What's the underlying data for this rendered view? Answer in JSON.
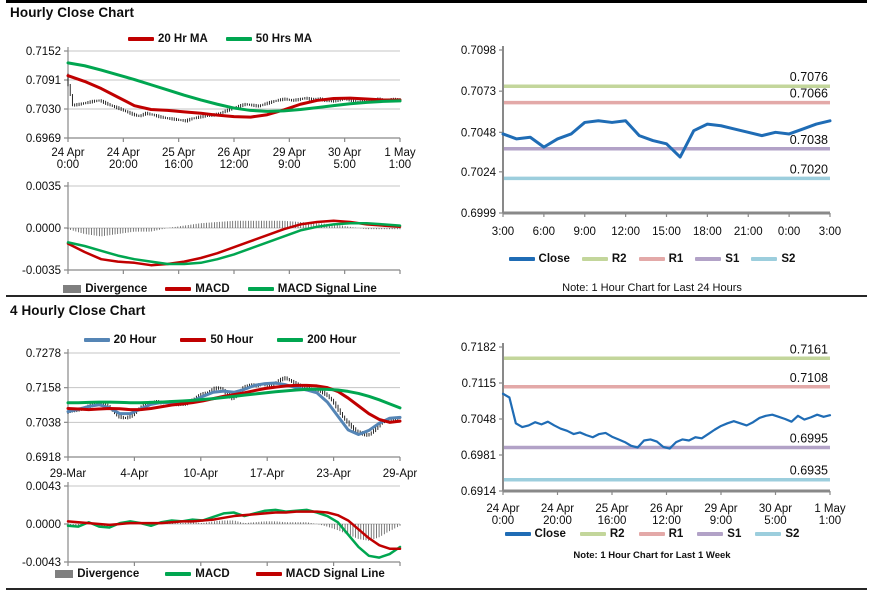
{
  "sections": [
    {
      "title": "Hourly Close Chart"
    },
    {
      "title": "4 Hourly Close Chart"
    }
  ],
  "colors": {
    "ma_red": "#C00000",
    "ma_green": "#00A650",
    "ma_blue": "#5585B5",
    "close_blue": "#1F6CB5",
    "r2_green": "#C3D69B",
    "r1_pink": "#E3A9A8",
    "s1_purple": "#B2A2C7",
    "s2_lightblue": "#9CCEDD",
    "divergence_gray": "#595959",
    "price_black": "#111111"
  },
  "chart_data": [
    {
      "id": "hourly-price",
      "type": "line",
      "title": "Hourly Close Chart",
      "ylim": [
        0.6969,
        0.7152
      ],
      "yticks": [
        "0.7152",
        "0.7091",
        "0.7030",
        "0.6969"
      ],
      "xlabels": [
        [
          "24 Apr",
          "0:00"
        ],
        [
          "24 Apr",
          "20:00"
        ],
        [
          "25 Apr",
          "16:00"
        ],
        [
          "26 Apr",
          "12:00"
        ],
        [
          "29 Apr",
          "9:00"
        ],
        [
          "30 Apr",
          "5:00"
        ],
        [
          "1 May",
          "1:00"
        ]
      ],
      "legend": [
        {
          "label": "20 Hr MA",
          "color": "#C00000",
          "swatch": "line"
        },
        {
          "label": "50 Hrs MA",
          "color": "#00A650",
          "swatch": "line"
        }
      ],
      "series": [
        {
          "name": "Close",
          "type": "hilo",
          "color": "#111111",
          "values": [
            0.7102,
            0.7038,
            0.704,
            0.7043,
            0.7046,
            0.7048,
            0.7042,
            0.7036,
            0.7031,
            0.7025,
            0.7019,
            0.7015,
            0.7021,
            0.7018,
            0.7014,
            0.7011,
            0.7009,
            0.7007,
            0.7005,
            0.701,
            0.7013,
            0.7015,
            0.7017,
            0.702,
            0.7026,
            0.7031,
            0.7036,
            0.704,
            0.7038,
            0.7036,
            0.7041,
            0.7045,
            0.7049,
            0.7051,
            0.7048,
            0.705,
            0.7053,
            0.705,
            0.7052,
            0.7048,
            0.7046,
            0.7049,
            0.7051,
            0.7048,
            0.7045,
            0.7049,
            0.7047,
            0.7051,
            0.7048,
            0.705,
            0.7051
          ]
        },
        {
          "name": "20 Hr MA",
          "type": "line",
          "color": "#C00000",
          "width": 3,
          "values": [
            0.71,
            0.7088,
            0.7073,
            0.7055,
            0.7037,
            0.7029,
            0.7027,
            0.7024,
            0.7021,
            0.7017,
            0.7014,
            0.7013,
            0.7018,
            0.7028,
            0.704,
            0.7048,
            0.7052,
            0.7053,
            0.7051,
            0.7049,
            0.7049
          ]
        },
        {
          "name": "50 Hrs MA",
          "type": "line",
          "color": "#00A650",
          "width": 3,
          "values": [
            0.7127,
            0.7121,
            0.7112,
            0.7102,
            0.7092,
            0.7081,
            0.707,
            0.7059,
            0.7049,
            0.704,
            0.7032,
            0.7027,
            0.7025,
            0.7026,
            0.7029,
            0.7033,
            0.7037,
            0.7041,
            0.7044,
            0.7046,
            0.7047
          ]
        }
      ]
    },
    {
      "id": "hourly-macd",
      "type": "line",
      "ylim": [
        -0.0035,
        0.0035
      ],
      "yticks": [
        "0.0035",
        "0.0000",
        "-0.0035"
      ],
      "legend": [
        {
          "label": "Divergence",
          "color": "#7F7F7F",
          "swatch": "block"
        },
        {
          "label": "MACD",
          "color": "#C00000",
          "swatch": "line"
        },
        {
          "label": "MACD Signal Line",
          "color": "#00A650",
          "swatch": "line"
        }
      ],
      "series": [
        {
          "name": "Divergence",
          "type": "bars",
          "color": "#595959",
          "values": [
            -0.0001,
            -0.0005,
            -0.0007,
            -0.0005,
            -0.0003,
            -0.0003,
            0.0,
            0.0002,
            0.0004,
            0.0005,
            0.0006,
            0.0006,
            0.0006,
            0.0006,
            0.0005,
            0.0004,
            0.0003,
            0.0001,
            -0.0001,
            -0.0001,
            -0.0001
          ]
        },
        {
          "name": "MACD",
          "type": "line",
          "color": "#C00000",
          "width": 2.5,
          "values": [
            -0.0013,
            -0.002,
            -0.0026,
            -0.0028,
            -0.0029,
            -0.0031,
            -0.003,
            -0.0028,
            -0.0025,
            -0.0021,
            -0.0016,
            -0.0011,
            -0.0006,
            -0.0001,
            0.0003,
            0.0005,
            0.0006,
            0.0005,
            0.0003,
            0.0002,
            0.0001
          ]
        },
        {
          "name": "MACD Signal Line",
          "type": "line",
          "color": "#00A650",
          "width": 2.5,
          "values": [
            -0.0012,
            -0.0015,
            -0.0019,
            -0.0023,
            -0.0026,
            -0.0028,
            -0.003,
            -0.003,
            -0.0029,
            -0.0026,
            -0.0022,
            -0.0017,
            -0.0012,
            -0.0007,
            -0.0002,
            0.0001,
            0.0003,
            0.0004,
            0.0004,
            0.0003,
            0.0002
          ]
        }
      ]
    },
    {
      "id": "hourly-pivot",
      "type": "line",
      "ylim": [
        0.6999,
        0.7098
      ],
      "yticks": [
        "0.7098",
        "0.7073",
        "0.7048",
        "0.7024",
        "0.6999"
      ],
      "xlabels": [
        "3:00",
        "6:00",
        "9:00",
        "12:00",
        "15:00",
        "18:00",
        "21:00",
        "0:00",
        "3:00"
      ],
      "note": "Note: 1 Hour Chart for Last 24 Hours",
      "levels": [
        {
          "name": "R2",
          "value": 0.7076,
          "label": "0.7076",
          "color": "#C3D69B"
        },
        {
          "name": "R1",
          "value": 0.7066,
          "label": "0.7066",
          "color": "#E3A9A8"
        },
        {
          "name": "S1",
          "value": 0.7038,
          "label": "0.7038",
          "color": "#B2A2C7"
        },
        {
          "name": "S2",
          "value": 0.702,
          "label": "0.7020",
          "color": "#9CCEDD"
        }
      ],
      "legend": [
        {
          "label": "Close",
          "color": "#1F6CB5",
          "swatch": "line"
        },
        {
          "label": "R2",
          "color": "#C3D69B",
          "swatch": "line"
        },
        {
          "label": "R1",
          "color": "#E3A9A8",
          "swatch": "line"
        },
        {
          "label": "S1",
          "color": "#B2A2C7",
          "swatch": "line"
        },
        {
          "label": "S2",
          "color": "#9CCEDD",
          "swatch": "line"
        }
      ],
      "series": [
        {
          "name": "Close",
          "type": "line",
          "color": "#1F6CB5",
          "width": 3,
          "values": [
            0.7047,
            0.7044,
            0.7045,
            0.7039,
            0.7044,
            0.7047,
            0.7054,
            0.7055,
            0.7054,
            0.7055,
            0.7046,
            0.7043,
            0.7041,
            0.7033,
            0.7049,
            0.7053,
            0.7052,
            0.705,
            0.7048,
            0.7046,
            0.7048,
            0.7047,
            0.705,
            0.7053,
            0.7055
          ]
        }
      ]
    },
    {
      "id": "fourhourly-price",
      "type": "line",
      "title": "4 Hourly Close Chart",
      "ylim": [
        0.6918,
        0.7278
      ],
      "yticks": [
        "0.7278",
        "0.7158",
        "0.7038",
        "0.6918"
      ],
      "xlabels": [
        "29-Mar",
        "4-Apr",
        "10-Apr",
        "17-Apr",
        "23-Apr",
        "29-Apr"
      ],
      "legend": [
        {
          "label": "20 Hour",
          "color": "#5585B5",
          "swatch": "line"
        },
        {
          "label": "50 Hour",
          "color": "#C00000",
          "swatch": "line"
        },
        {
          "label": "200 Hour",
          "color": "#00A650",
          "swatch": "line"
        }
      ],
      "series": [
        {
          "name": "Close",
          "type": "hilo",
          "color": "#111111",
          "values": [
            0.7072,
            0.7078,
            0.7082,
            0.7088,
            0.7096,
            0.7104,
            0.7102,
            0.7095,
            0.7075,
            0.7057,
            0.7052,
            0.7062,
            0.708,
            0.7098,
            0.7106,
            0.711,
            0.7106,
            0.711,
            0.7104,
            0.7098,
            0.7102,
            0.7112,
            0.7125,
            0.7136,
            0.7142,
            0.7155,
            0.7158,
            0.7138,
            0.712,
            0.7135,
            0.716,
            0.7168,
            0.7165,
            0.717,
            0.7166,
            0.717,
            0.7185,
            0.7192,
            0.718,
            0.7168,
            0.7162,
            0.7152,
            0.7148,
            0.7145,
            0.7132,
            0.711,
            0.7078,
            0.7048,
            0.7025,
            0.7008,
            0.6998,
            0.6993,
            0.7012,
            0.7035,
            0.7046,
            0.7042,
            0.7053
          ]
        },
        {
          "name": "20 Hour",
          "type": "line",
          "color": "#5585B5",
          "width": 3,
          "values": [
            0.7075,
            0.7083,
            0.7093,
            0.7099,
            0.7088,
            0.7068,
            0.7068,
            0.7085,
            0.71,
            0.7107,
            0.7106,
            0.7104,
            0.7112,
            0.7128,
            0.7142,
            0.7146,
            0.7142,
            0.7152,
            0.7166,
            0.7172,
            0.7174,
            0.7168,
            0.7158,
            0.715,
            0.714,
            0.7108,
            0.706,
            0.7012,
            0.6996,
            0.701,
            0.7035,
            0.7052,
            0.7055
          ]
        },
        {
          "name": "50 Hour",
          "type": "line",
          "color": "#C00000",
          "width": 3,
          "values": [
            0.7086,
            0.7084,
            0.7082,
            0.7084,
            0.7086,
            0.7085,
            0.7082,
            0.7082,
            0.7086,
            0.7092,
            0.7098,
            0.7102,
            0.7106,
            0.7112,
            0.712,
            0.7128,
            0.7134,
            0.714,
            0.7148,
            0.7155,
            0.716,
            0.7164,
            0.7166,
            0.7166,
            0.7164,
            0.7158,
            0.7145,
            0.7122,
            0.7095,
            0.7068,
            0.7048,
            0.7038,
            0.7042
          ]
        },
        {
          "name": "200 Hour",
          "type": "line",
          "color": "#00A650",
          "width": 3,
          "values": [
            0.7106,
            0.7106,
            0.7107,
            0.7108,
            0.7108,
            0.7107,
            0.7106,
            0.7106,
            0.7107,
            0.7108,
            0.711,
            0.7112,
            0.7114,
            0.7117,
            0.712,
            0.7124,
            0.7128,
            0.7132,
            0.7136,
            0.714,
            0.7144,
            0.7147,
            0.715,
            0.7152,
            0.7153,
            0.7152,
            0.715,
            0.7145,
            0.7138,
            0.7128,
            0.7116,
            0.7102,
            0.7088
          ]
        }
      ]
    },
    {
      "id": "fourhourly-macd",
      "type": "line",
      "ylim": [
        -0.0043,
        0.0043
      ],
      "yticks": [
        "0.0043",
        "0.0000",
        "-0.0043"
      ],
      "legend": [
        {
          "label": "Divergence",
          "color": "#7F7F7F",
          "swatch": "block"
        },
        {
          "label": "MACD",
          "color": "#00A650",
          "swatch": "line"
        },
        {
          "label": "MACD Signal Line",
          "color": "#C00000",
          "swatch": "line"
        }
      ],
      "series": [
        {
          "name": "Divergence",
          "type": "bars",
          "color": "#595959",
          "values": [
            -0.0002,
            -0.0003,
            0.0001,
            -0.0002,
            -0.0003,
            0.0001,
            0.0002,
            0.0,
            -0.0002,
            0.0001,
            0.0002,
            0.0001,
            0.0002,
            0.0001,
            0.0003,
            0.0004,
            0.0004,
            0.0001,
            0.0002,
            0.0003,
            0.0003,
            0.0002,
            0.0002,
            0.0002,
            0.0,
            -0.0003,
            -0.0007,
            -0.0012,
            -0.0017,
            -0.0019,
            -0.0015,
            -0.0008,
            -0.0002
          ]
        },
        {
          "name": "MACD",
          "type": "line",
          "color": "#00A650",
          "width": 2.5,
          "values": [
            -0.0002,
            -0.0003,
            0.0002,
            -0.0003,
            -0.0004,
            0.0001,
            0.0003,
            0.0001,
            -0.0002,
            0.0002,
            0.0004,
            0.0003,
            0.0005,
            0.0004,
            0.0008,
            0.0012,
            0.0013,
            0.0009,
            0.0012,
            0.0015,
            0.0016,
            0.0014,
            0.0015,
            0.0016,
            0.0013,
            0.0009,
            0.0002,
            -0.0012,
            -0.0026,
            -0.0036,
            -0.0038,
            -0.0034,
            -0.0026
          ]
        },
        {
          "name": "MACD Signal Line",
          "type": "line",
          "color": "#C00000",
          "width": 2.5,
          "values": [
            0.0003,
            0.0002,
            0.0001,
            0.0,
            -0.0001,
            0.0,
            0.0001,
            0.0001,
            0.0001,
            0.0001,
            0.0002,
            0.0003,
            0.0003,
            0.0004,
            0.0005,
            0.0007,
            0.0009,
            0.001,
            0.0011,
            0.0012,
            0.0013,
            0.0013,
            0.0014,
            0.0014,
            0.0014,
            0.0013,
            0.001,
            0.0004,
            -0.0006,
            -0.0016,
            -0.0024,
            -0.0028,
            -0.0028
          ]
        }
      ]
    },
    {
      "id": "weekly-pivot",
      "type": "line",
      "ylim": [
        0.6914,
        0.7182
      ],
      "yticks": [
        "0.7182",
        "0.7115",
        "0.7048",
        "0.6981",
        "0.6914"
      ],
      "xlabels": [
        [
          "24 Apr",
          "0:00"
        ],
        [
          "24 Apr",
          "20:00"
        ],
        [
          "25 Apr",
          "16:00"
        ],
        [
          "26 Apr",
          "12:00"
        ],
        [
          "29 Apr",
          "9:00"
        ],
        [
          "30 Apr",
          "5:00"
        ],
        [
          "1 May",
          "1:00"
        ]
      ],
      "note": "Note: 1 Hour Chart for Last 1 Week",
      "levels": [
        {
          "name": "R2",
          "value": 0.7161,
          "label": "0.7161",
          "color": "#C3D69B"
        },
        {
          "name": "R1",
          "value": 0.7108,
          "label": "0.7108",
          "color": "#E3A9A8"
        },
        {
          "name": "S1",
          "value": 0.6995,
          "label": "0.6995",
          "color": "#B2A2C7"
        },
        {
          "name": "S2",
          "value": 0.6935,
          "label": "0.6935",
          "color": "#9CCEDD"
        }
      ],
      "legend": [
        {
          "label": "Close",
          "color": "#1F6CB5",
          "swatch": "line"
        },
        {
          "label": "R2",
          "color": "#C3D69B",
          "swatch": "line"
        },
        {
          "label": "R1",
          "color": "#E3A9A8",
          "swatch": "line"
        },
        {
          "label": "S1",
          "color": "#B2A2C7",
          "swatch": "line"
        },
        {
          "label": "S2",
          "color": "#9CCEDD",
          "swatch": "line"
        }
      ],
      "series": [
        {
          "name": "Close",
          "type": "line",
          "color": "#1F6CB5",
          "width": 2.2,
          "values": [
            0.7095,
            0.7088,
            0.704,
            0.7033,
            0.7036,
            0.7042,
            0.7038,
            0.7043,
            0.7036,
            0.703,
            0.7026,
            0.702,
            0.7023,
            0.7018,
            0.7014,
            0.702,
            0.7022,
            0.7015,
            0.701,
            0.7005,
            0.6998,
            0.6995,
            0.7008,
            0.701,
            0.7006,
            0.6996,
            0.6993,
            0.7005,
            0.701,
            0.7008,
            0.7014,
            0.7012,
            0.702,
            0.7028,
            0.7035,
            0.704,
            0.7044,
            0.704,
            0.7036,
            0.7042,
            0.705,
            0.7054,
            0.7056,
            0.7052,
            0.7048,
            0.7043,
            0.7054,
            0.7047,
            0.7051,
            0.7056,
            0.7052,
            0.7055
          ]
        }
      ]
    }
  ]
}
